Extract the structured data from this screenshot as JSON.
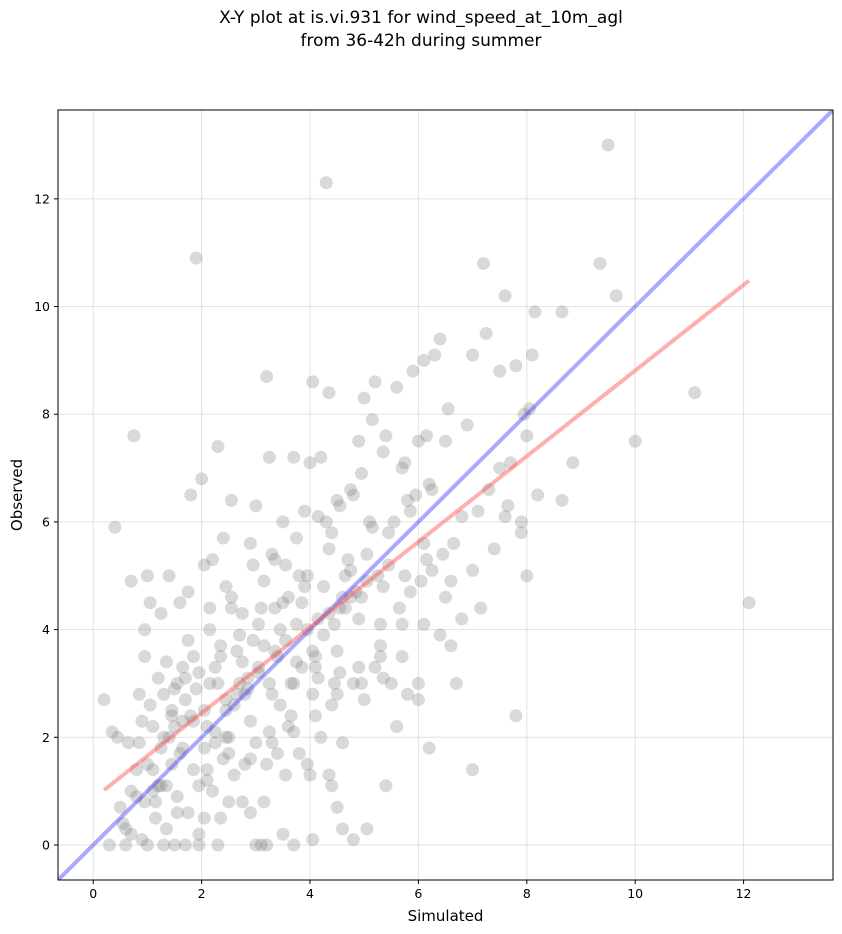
{
  "chart_data": {
    "type": "scatter",
    "title_line1": "X-Y plot at is.vi.931 for wind_speed_at_10m_agl",
    "title_line2": "from 36-42h during summer",
    "xlabel": "Simulated",
    "ylabel": "Observed",
    "xlim": [
      -0.65,
      13.65
    ],
    "ylim": [
      -0.65,
      13.65
    ],
    "x_ticks": [
      0,
      2,
      4,
      6,
      8,
      10,
      12
    ],
    "y_ticks": [
      0,
      2,
      4,
      6,
      8,
      10,
      12
    ],
    "grid": true,
    "point_color": "#808080",
    "identity_line": {
      "color": "#4040ff",
      "from": [
        -0.65,
        -0.65
      ],
      "to": [
        13.65,
        13.65
      ]
    },
    "fit_line": {
      "color": "#ff4d4d",
      "from": [
        0.2,
        1.02
      ],
      "to": [
        12.1,
        10.48
      ]
    },
    "points": [
      [
        0.2,
        2.7
      ],
      [
        0.35,
        2.1
      ],
      [
        0.4,
        5.9
      ],
      [
        0.45,
        2.0
      ],
      [
        0.5,
        0.7
      ],
      [
        0.55,
        0.4
      ],
      [
        0.6,
        0.3
      ],
      [
        0.65,
        1.9
      ],
      [
        0.7,
        4.9
      ],
      [
        0.75,
        7.6
      ],
      [
        0.8,
        0.9
      ],
      [
        0.85,
        2.8
      ],
      [
        0.9,
        2.3
      ],
      [
        0.95,
        4.0
      ],
      [
        1.0,
        5.0
      ],
      [
        1.05,
        4.5
      ],
      [
        1.1,
        2.2
      ],
      [
        1.15,
        0.8
      ],
      [
        1.2,
        3.1
      ],
      [
        1.25,
        4.3
      ],
      [
        1.3,
        2.0
      ],
      [
        1.35,
        1.1
      ],
      [
        1.4,
        5.0
      ],
      [
        1.45,
        2.5
      ],
      [
        1.5,
        2.9
      ],
      [
        1.55,
        0.6
      ],
      [
        1.6,
        4.5
      ],
      [
        1.65,
        1.8
      ],
      [
        1.7,
        3.1
      ],
      [
        1.75,
        4.7
      ],
      [
        1.8,
        6.5
      ],
      [
        1.85,
        2.3
      ],
      [
        1.9,
        10.9
      ],
      [
        1.95,
        0.2
      ],
      [
        2.0,
        6.8
      ],
      [
        2.05,
        5.2
      ],
      [
        2.1,
        1.2
      ],
      [
        2.15,
        3.0
      ],
      [
        2.2,
        5.3
      ],
      [
        2.25,
        1.9
      ],
      [
        2.3,
        7.4
      ],
      [
        2.35,
        3.7
      ],
      [
        2.4,
        5.7
      ],
      [
        2.45,
        2.0
      ],
      [
        2.5,
        0.8
      ],
      [
        2.55,
        6.4
      ],
      [
        2.6,
        2.6
      ],
      [
        2.7,
        3.0
      ],
      [
        2.8,
        2.8
      ],
      [
        2.9,
        5.6
      ],
      [
        3.0,
        6.3
      ],
      [
        3.05,
        4.1
      ],
      [
        3.1,
        0.0
      ],
      [
        3.2,
        8.7
      ],
      [
        3.25,
        7.2
      ],
      [
        3.3,
        5.4
      ],
      [
        3.4,
        3.5
      ],
      [
        3.5,
        6.0
      ],
      [
        3.6,
        4.6
      ],
      [
        3.7,
        7.2
      ],
      [
        3.8,
        5.0
      ],
      [
        3.9,
        6.2
      ],
      [
        4.0,
        7.1
      ],
      [
        4.05,
        8.6
      ],
      [
        4.1,
        3.5
      ],
      [
        4.2,
        7.2
      ],
      [
        4.3,
        12.3
      ],
      [
        4.35,
        8.4
      ],
      [
        4.4,
        5.8
      ],
      [
        4.5,
        6.4
      ],
      [
        4.6,
        4.6
      ],
      [
        4.7,
        5.3
      ],
      [
        4.8,
        6.5
      ],
      [
        4.9,
        7.5
      ],
      [
        5.0,
        8.3
      ],
      [
        5.1,
        6.0
      ],
      [
        5.2,
        8.6
      ],
      [
        5.3,
        4.1
      ],
      [
        5.4,
        7.6
      ],
      [
        5.5,
        3.0
      ],
      [
        5.6,
        8.5
      ],
      [
        5.7,
        7.0
      ],
      [
        5.8,
        6.4
      ],
      [
        5.9,
        8.8
      ],
      [
        6.0,
        7.5
      ],
      [
        6.1,
        9.0
      ],
      [
        6.2,
        6.7
      ],
      [
        6.3,
        9.1
      ],
      [
        6.4,
        9.4
      ],
      [
        6.5,
        7.5
      ],
      [
        6.6,
        4.9
      ],
      [
        6.8,
        6.1
      ],
      [
        6.9,
        7.8
      ],
      [
        7.0,
        9.1
      ],
      [
        7.1,
        6.2
      ],
      [
        7.2,
        10.8
      ],
      [
        7.25,
        9.5
      ],
      [
        7.5,
        7.0
      ],
      [
        7.6,
        6.1
      ],
      [
        7.7,
        7.1
      ],
      [
        7.8,
        2.4
      ],
      [
        7.9,
        5.8
      ],
      [
        8.0,
        7.6
      ],
      [
        8.1,
        9.1
      ],
      [
        8.15,
        9.9
      ],
      [
        8.2,
        6.5
      ],
      [
        8.65,
        6.4
      ],
      [
        8.65,
        9.9
      ],
      [
        8.85,
        7.1
      ],
      [
        9.35,
        10.8
      ],
      [
        9.5,
        13.0
      ],
      [
        9.65,
        10.2
      ],
      [
        10.0,
        7.5
      ],
      [
        11.1,
        8.4
      ],
      [
        12.1,
        4.5
      ],
      [
        0.3,
        0.0
      ],
      [
        0.6,
        0.0
      ],
      [
        0.9,
        0.1
      ],
      [
        1.0,
        0.0
      ],
      [
        1.3,
        0.0
      ],
      [
        1.5,
        0.0
      ],
      [
        1.7,
        0.0
      ],
      [
        1.95,
        0.0
      ],
      [
        2.3,
        0.0
      ],
      [
        3.0,
        0.0
      ],
      [
        3.2,
        0.0
      ],
      [
        3.7,
        0.0
      ],
      [
        4.05,
        0.1
      ],
      [
        4.6,
        0.3
      ],
      [
        4.8,
        0.1
      ],
      [
        5.05,
        0.3
      ],
      [
        2.9,
        0.6
      ],
      [
        3.5,
        0.2
      ],
      [
        4.5,
        0.7
      ],
      [
        4.4,
        1.1
      ],
      [
        0.8,
        1.4
      ],
      [
        1.0,
        1.5
      ],
      [
        1.2,
        1.1
      ],
      [
        1.4,
        2.0
      ],
      [
        1.6,
        1.7
      ],
      [
        1.8,
        2.4
      ],
      [
        2.05,
        0.5
      ],
      [
        2.2,
        1.0
      ],
      [
        2.4,
        1.6
      ],
      [
        2.6,
        1.3
      ],
      [
        2.8,
        1.5
      ],
      [
        3.0,
        1.9
      ],
      [
        3.2,
        1.5
      ],
      [
        3.4,
        1.7
      ],
      [
        3.6,
        2.2
      ],
      [
        3.8,
        1.7
      ],
      [
        4.0,
        1.3
      ],
      [
        4.2,
        2.0
      ],
      [
        4.4,
        2.6
      ],
      [
        4.6,
        1.9
      ],
      [
        4.8,
        3.0
      ],
      [
        5.0,
        2.7
      ],
      [
        5.2,
        3.3
      ],
      [
        5.4,
        1.1
      ],
      [
        5.6,
        2.2
      ],
      [
        5.8,
        2.8
      ],
      [
        6.0,
        3.0
      ],
      [
        6.2,
        1.8
      ],
      [
        6.4,
        3.9
      ],
      [
        6.7,
        3.0
      ],
      [
        7.0,
        1.4
      ],
      [
        7.3,
        6.6
      ],
      [
        7.5,
        8.8
      ],
      [
        7.8,
        8.9
      ],
      [
        8.0,
        5.0
      ],
      [
        7.6,
        10.2
      ],
      [
        6.8,
        4.2
      ],
      [
        6.1,
        5.6
      ],
      [
        5.7,
        4.1
      ],
      [
        5.3,
        3.7
      ],
      [
        4.9,
        4.2
      ],
      [
        4.5,
        3.6
      ],
      [
        4.1,
        3.3
      ],
      [
        3.7,
        3.0
      ],
      [
        3.3,
        2.8
      ],
      [
        2.9,
        2.3
      ],
      [
        2.5,
        2.0
      ],
      [
        2.1,
        2.2
      ],
      [
        1.7,
        2.7
      ],
      [
        1.3,
        2.8
      ],
      [
        0.95,
        3.5
      ],
      [
        1.1,
        1.0
      ],
      [
        1.45,
        1.5
      ],
      [
        1.85,
        1.4
      ],
      [
        2.25,
        3.3
      ],
      [
        2.65,
        3.6
      ],
      [
        3.05,
        3.2
      ],
      [
        3.45,
        4.0
      ],
      [
        3.85,
        4.5
      ],
      [
        4.25,
        4.8
      ],
      [
        4.65,
        5.0
      ],
      [
        5.05,
        5.4
      ],
      [
        5.45,
        5.8
      ],
      [
        5.85,
        6.2
      ],
      [
        6.25,
        6.6
      ],
      [
        3.15,
        4.9
      ],
      [
        3.55,
        5.2
      ],
      [
        3.95,
        5.0
      ],
      [
        4.35,
        5.5
      ],
      [
        4.75,
        5.1
      ],
      [
        5.15,
        5.9
      ],
      [
        5.55,
        6.0
      ],
      [
        5.95,
        6.5
      ],
      [
        2.45,
        4.8
      ],
      [
        2.75,
        4.3
      ],
      [
        3.35,
        4.4
      ],
      [
        3.75,
        4.1
      ],
      [
        4.15,
        4.2
      ],
      [
        4.55,
        4.4
      ],
      [
        4.95,
        4.6
      ],
      [
        5.35,
        4.8
      ],
      [
        5.75,
        5.0
      ],
      [
        6.15,
        5.3
      ],
      [
        2.15,
        4.0
      ],
      [
        2.55,
        4.4
      ],
      [
        2.95,
        3.8
      ],
      [
        3.35,
        3.6
      ],
      [
        3.75,
        3.4
      ],
      [
        4.15,
        3.1
      ],
      [
        4.55,
        3.2
      ],
      [
        4.95,
        3.0
      ],
      [
        5.35,
        3.1
      ],
      [
        1.55,
        3.0
      ],
      [
        1.95,
        3.2
      ],
      [
        2.35,
        3.5
      ],
      [
        2.75,
        3.4
      ],
      [
        3.15,
        3.7
      ],
      [
        3.55,
        3.8
      ],
      [
        3.95,
        4.0
      ],
      [
        4.35,
        4.3
      ],
      [
        4.75,
        4.6
      ],
      [
        1.25,
        1.8
      ],
      [
        1.65,
        2.3
      ],
      [
        2.05,
        2.5
      ],
      [
        2.45,
        2.7
      ],
      [
        2.85,
        2.9
      ],
      [
        3.25,
        3.0
      ],
      [
        3.65,
        2.4
      ],
      [
        4.05,
        2.8
      ],
      [
        4.45,
        3.0
      ],
      [
        0.7,
        0.2
      ],
      [
        1.15,
        0.5
      ],
      [
        1.55,
        0.9
      ],
      [
        1.95,
        1.1
      ],
      [
        2.35,
        0.5
      ],
      [
        2.75,
        0.8
      ],
      [
        3.15,
        0.8
      ],
      [
        3.55,
        1.3
      ],
      [
        3.95,
        1.5
      ],
      [
        4.35,
        1.3
      ],
      [
        0.85,
        1.9
      ],
      [
        1.05,
        2.6
      ],
      [
        1.25,
        1.1
      ],
      [
        1.45,
        2.4
      ],
      [
        1.65,
        3.3
      ],
      [
        1.85,
        3.5
      ],
      [
        2.05,
        1.8
      ],
      [
        2.25,
        2.1
      ],
      [
        2.45,
        2.5
      ],
      [
        2.65,
        2.8
      ],
      [
        2.85,
        3.1
      ],
      [
        3.05,
        3.3
      ],
      [
        3.25,
        2.1
      ],
      [
        3.45,
        2.6
      ],
      [
        3.65,
        3.0
      ],
      [
        3.85,
        3.3
      ],
      [
        4.05,
        3.6
      ],
      [
        4.25,
        3.9
      ],
      [
        4.45,
        4.1
      ],
      [
        4.65,
        4.4
      ],
      [
        4.85,
        4.7
      ],
      [
        5.05,
        4.9
      ],
      [
        5.25,
        5.0
      ],
      [
        5.45,
        5.2
      ],
      [
        5.65,
        4.4
      ],
      [
        5.85,
        4.7
      ],
      [
        6.05,
        4.9
      ],
      [
        6.25,
        5.1
      ],
      [
        6.45,
        5.4
      ],
      [
        6.65,
        5.6
      ],
      [
        1.35,
        3.4
      ],
      [
        1.75,
        3.8
      ],
      [
        2.15,
        4.4
      ],
      [
        2.55,
        4.6
      ],
      [
        2.95,
        5.2
      ],
      [
        3.35,
        5.3
      ],
      [
        3.75,
        5.7
      ],
      [
        4.15,
        6.1
      ],
      [
        4.55,
        6.3
      ],
      [
        4.95,
        6.9
      ],
      [
        5.35,
        7.3
      ],
      [
        5.75,
        7.1
      ],
      [
        6.15,
        7.6
      ],
      [
        6.55,
        8.1
      ],
      [
        5.15,
        7.9
      ],
      [
        4.75,
        6.6
      ],
      [
        4.3,
        6.0
      ],
      [
        3.9,
        4.8
      ],
      [
        3.5,
        4.5
      ],
      [
        3.1,
        4.4
      ],
      [
        2.7,
        3.9
      ],
      [
        2.3,
        3.0
      ],
      [
        1.9,
        2.9
      ],
      [
        1.5,
        2.2
      ],
      [
        1.1,
        1.4
      ],
      [
        0.7,
        1.0
      ],
      [
        0.95,
        0.8
      ],
      [
        1.35,
        0.3
      ],
      [
        1.75,
        0.6
      ],
      [
        2.1,
        1.4
      ],
      [
        2.5,
        1.7
      ],
      [
        2.9,
        1.6
      ],
      [
        3.3,
        1.9
      ],
      [
        3.7,
        2.1
      ],
      [
        4.1,
        2.4
      ],
      [
        4.5,
        2.8
      ],
      [
        4.9,
        3.3
      ],
      [
        5.3,
        3.5
      ],
      [
        5.7,
        3.5
      ],
      [
        6.1,
        4.1
      ],
      [
        6.5,
        4.6
      ],
      [
        7.0,
        5.1
      ],
      [
        7.4,
        5.5
      ],
      [
        7.9,
        6.0
      ],
      [
        7.95,
        8.0
      ],
      [
        8.05,
        8.1
      ],
      [
        7.65,
        6.3
      ],
      [
        7.15,
        4.4
      ],
      [
        6.6,
        3.7
      ],
      [
        6.0,
        2.7
      ]
    ]
  }
}
